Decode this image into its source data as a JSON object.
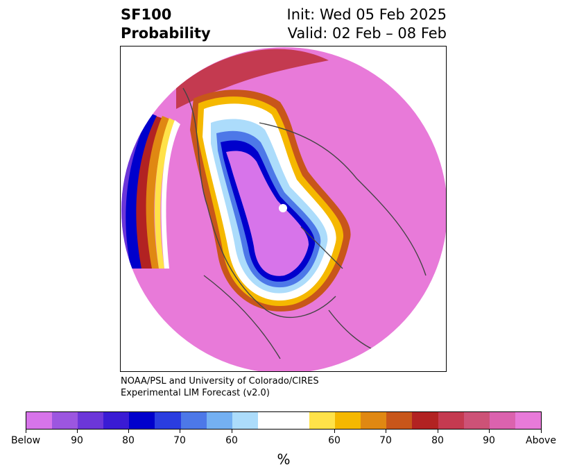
{
  "title": {
    "left_line1": "SF100",
    "left_line2": "Probability",
    "right_line1": "Init: Wed 05 Feb 2025",
    "right_line2": "Valid: 02 Feb – 08 Feb"
  },
  "credit": {
    "line1": "NOAA/PSL and University of Colorado/CIRES",
    "line2": "Experimental LIM Forecast (v2.0)"
  },
  "colorbar": {
    "unit": "%",
    "colors": [
      "#d774ea",
      "#9c56e0",
      "#6c36d9",
      "#3a1bd4",
      "#0000cc",
      "#2a3de0",
      "#4d78e8",
      "#74b0f2",
      "#acdcfb",
      "#ffffff",
      "#ffe249",
      "#f5b800",
      "#e08812",
      "#c8561a",
      "#b22222",
      "#c43a50",
      "#cd5277",
      "#db62ae",
      "#e87ad9"
    ],
    "tick_labels": [
      "Below",
      "90",
      "80",
      "70",
      "60",
      "60",
      "70",
      "80",
      "90",
      "Above"
    ]
  },
  "map": {
    "projection": "polar-stereographic-north",
    "field_colors": {
      "above": "#e87ad9",
      "below": "#d774ea",
      "coast": "#444444"
    }
  }
}
